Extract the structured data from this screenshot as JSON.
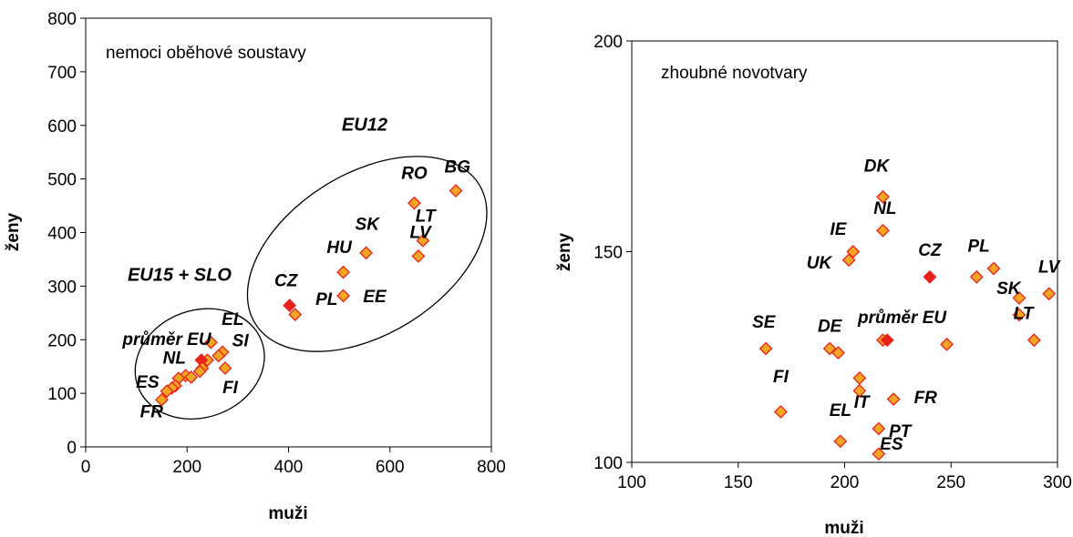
{
  "chart_data": [
    {
      "type": "scatter",
      "title": "nemoci oběhové soustavy",
      "xlabel": "muži",
      "ylabel": "ženy",
      "xlim": [
        0,
        800
      ],
      "ylim": [
        0,
        800
      ],
      "xticks": [
        "0",
        "200",
        "400",
        "600",
        "800"
      ],
      "yticks": [
        "0",
        "100",
        "200",
        "300",
        "400",
        "500",
        "600",
        "700",
        "800"
      ],
      "marker_color": "#F5A623",
      "marker_edge_color": "#E8211A",
      "highlight_color": "#E8211A",
      "points": [
        {
          "x": 730,
          "y": 478,
          "highlight": false
        },
        {
          "x": 648,
          "y": 455,
          "highlight": false
        },
        {
          "x": 665,
          "y": 385,
          "highlight": false
        },
        {
          "x": 656,
          "y": 356,
          "highlight": false
        },
        {
          "x": 553,
          "y": 362,
          "highlight": false
        },
        {
          "x": 508,
          "y": 326,
          "highlight": false
        },
        {
          "x": 508,
          "y": 282,
          "highlight": false
        },
        {
          "x": 402,
          "y": 264,
          "highlight": true
        },
        {
          "x": 413,
          "y": 247,
          "highlight": false
        },
        {
          "x": 247,
          "y": 195,
          "highlight": false
        },
        {
          "x": 270,
          "y": 177,
          "highlight": false
        },
        {
          "x": 262,
          "y": 170,
          "highlight": false
        },
        {
          "x": 240,
          "y": 162,
          "highlight": false
        },
        {
          "x": 228,
          "y": 162,
          "highlight": true
        },
        {
          "x": 230,
          "y": 147,
          "highlight": false
        },
        {
          "x": 275,
          "y": 147,
          "highlight": false
        },
        {
          "x": 225,
          "y": 141,
          "highlight": false
        },
        {
          "x": 197,
          "y": 133,
          "highlight": false
        },
        {
          "x": 208,
          "y": 130,
          "highlight": false
        },
        {
          "x": 183,
          "y": 128,
          "highlight": false
        },
        {
          "x": 177,
          "y": 114,
          "highlight": false
        },
        {
          "x": 170,
          "y": 110,
          "highlight": false
        },
        {
          "x": 160,
          "y": 104,
          "highlight": false
        },
        {
          "x": 150,
          "y": 88,
          "highlight": false
        }
      ],
      "annotations": [
        {
          "text": "BG",
          "x": 733,
          "y": 512
        },
        {
          "text": "RO",
          "x": 648,
          "y": 500
        },
        {
          "text": "LT",
          "x": 670,
          "y": 420
        },
        {
          "text": "LV",
          "x": 660,
          "y": 390
        },
        {
          "text": "SK",
          "x": 555,
          "y": 405
        },
        {
          "text": "HU",
          "x": 500,
          "y": 362
        },
        {
          "text": "CZ",
          "x": 395,
          "y": 300
        },
        {
          "text": "PL",
          "x": 475,
          "y": 265
        },
        {
          "text": "EE",
          "x": 570,
          "y": 270
        },
        {
          "text": "EL",
          "x": 290,
          "y": 228
        },
        {
          "text": "SI",
          "x": 305,
          "y": 188
        },
        {
          "text": "průměr EU",
          "x": 160,
          "y": 190
        },
        {
          "text": "NL",
          "x": 175,
          "y": 155
        },
        {
          "text": "ES",
          "x": 122,
          "y": 110
        },
        {
          "text": "FR",
          "x": 130,
          "y": 55
        },
        {
          "text": "FI",
          "x": 285,
          "y": 100
        }
      ],
      "group_labels": [
        {
          "text": "EU12",
          "x": 550,
          "y": 590
        },
        {
          "text": "EU15 + SLO",
          "x": 185,
          "y": 310
        }
      ],
      "ellipses": [
        {
          "cx": 555,
          "cy": 360,
          "rx": 260,
          "ry": 150,
          "rotation": 32
        },
        {
          "cx": 225,
          "cy": 155,
          "rx": 130,
          "ry": 100,
          "rotation": 20
        }
      ]
    },
    {
      "type": "scatter",
      "title": "zhoubné novotvary",
      "xlabel": "muži",
      "ylabel": "ženy",
      "xlim": [
        100,
        300
      ],
      "ylim": [
        100,
        200
      ],
      "xticks": [
        "100",
        "150",
        "200",
        "250",
        "300"
      ],
      "yticks": [
        "100",
        "150",
        "200"
      ],
      "marker_color": "#F5A623",
      "marker_edge_color": "#E8211A",
      "highlight_color": "#E8211A",
      "points": [
        {
          "x": 218,
          "y": 163,
          "highlight": false
        },
        {
          "x": 218,
          "y": 155,
          "highlight": false
        },
        {
          "x": 204,
          "y": 150,
          "highlight": false
        },
        {
          "x": 202,
          "y": 148,
          "highlight": false
        },
        {
          "x": 240,
          "y": 144,
          "highlight": true
        },
        {
          "x": 262,
          "y": 144,
          "highlight": false
        },
        {
          "x": 270,
          "y": 146,
          "highlight": false
        },
        {
          "x": 282,
          "y": 139,
          "highlight": false
        },
        {
          "x": 296,
          "y": 140,
          "highlight": false
        },
        {
          "x": 282,
          "y": 135,
          "highlight": false
        },
        {
          "x": 289,
          "y": 129,
          "highlight": false
        },
        {
          "x": 248,
          "y": 128,
          "highlight": false
        },
        {
          "x": 218,
          "y": 129,
          "highlight": false
        },
        {
          "x": 220,
          "y": 129,
          "highlight": true
        },
        {
          "x": 163,
          "y": 127,
          "highlight": false
        },
        {
          "x": 193,
          "y": 127,
          "highlight": false
        },
        {
          "x": 197,
          "y": 126,
          "highlight": false
        },
        {
          "x": 207,
          "y": 120,
          "highlight": false
        },
        {
          "x": 207,
          "y": 117,
          "highlight": false
        },
        {
          "x": 223,
          "y": 115,
          "highlight": false
        },
        {
          "x": 170,
          "y": 112,
          "highlight": false
        },
        {
          "x": 216,
          "y": 108,
          "highlight": false
        },
        {
          "x": 198,
          "y": 105,
          "highlight": false
        },
        {
          "x": 216,
          "y": 102,
          "highlight": false
        }
      ],
      "annotations": [
        {
          "text": "DK",
          "x": 215,
          "y": 169
        },
        {
          "text": "NL",
          "x": 219,
          "y": 159
        },
        {
          "text": "IE",
          "x": 197,
          "y": 154
        },
        {
          "text": "UK",
          "x": 188,
          "y": 146
        },
        {
          "text": "CZ",
          "x": 240,
          "y": 149
        },
        {
          "text": "PL",
          "x": 263,
          "y": 150
        },
        {
          "text": "LV",
          "x": 296,
          "y": 145
        },
        {
          "text": "SK",
          "x": 277,
          "y": 140
        },
        {
          "text": "LT",
          "x": 284,
          "y": 134
        },
        {
          "text": "průměr EU",
          "x": 227,
          "y": 133
        },
        {
          "text": "SE",
          "x": 162,
          "y": 132
        },
        {
          "text": "DE",
          "x": 193,
          "y": 131
        },
        {
          "text": "FI",
          "x": 170,
          "y": 119
        },
        {
          "text": "IT",
          "x": 208,
          "y": 113
        },
        {
          "text": "FR",
          "x": 238,
          "y": 114
        },
        {
          "text": "EL",
          "x": 198,
          "y": 111
        },
        {
          "text": "PT",
          "x": 226,
          "y": 106
        },
        {
          "text": "ES",
          "x": 222,
          "y": 103
        }
      ]
    }
  ]
}
